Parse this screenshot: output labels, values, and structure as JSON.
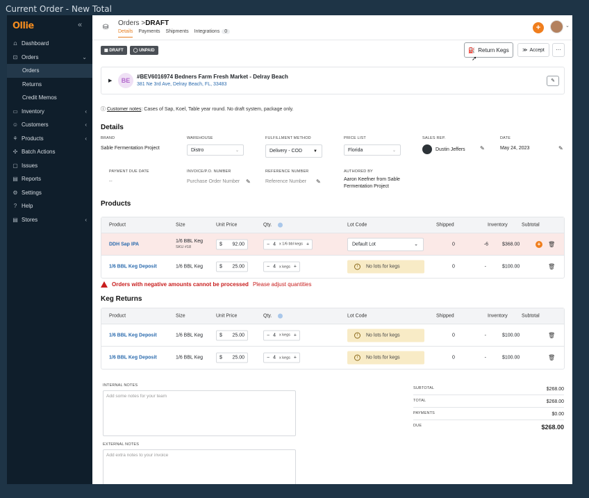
{
  "window_title": "Current Order - New Total",
  "logo": "Ollie",
  "collapse_icon": "«",
  "nav": [
    {
      "label": "Dashboard",
      "icon": "dashboard-icon",
      "glyph": "⩍"
    },
    {
      "label": "Orders",
      "icon": "orders-icon",
      "glyph": "⊡",
      "chev": "⌄"
    },
    {
      "label": "Orders",
      "sub": true,
      "active": true
    },
    {
      "label": "Returns",
      "sub": true
    },
    {
      "label": "Credit Memos",
      "sub": true
    },
    {
      "label": "Inventory",
      "icon": "inventory-icon",
      "glyph": "▭",
      "chev": "‹"
    },
    {
      "label": "Customers",
      "icon": "customers-icon",
      "glyph": "☺",
      "chev": "‹"
    },
    {
      "label": "Products",
      "icon": "products-icon",
      "glyph": "⚘",
      "chev": "‹"
    },
    {
      "label": "Batch Actions",
      "icon": "batch-icon",
      "glyph": "✣"
    },
    {
      "label": "Issues",
      "icon": "issues-icon",
      "glyph": "▢"
    },
    {
      "label": "Reports",
      "icon": "reports-icon",
      "glyph": "▤"
    },
    {
      "label": "Settings",
      "icon": "settings-icon",
      "glyph": "⚙"
    },
    {
      "label": "Help",
      "icon": "help-icon",
      "glyph": "?"
    },
    {
      "label": "Stores",
      "icon": "stores-icon",
      "glyph": "▤",
      "chev": "‹"
    }
  ],
  "header": {
    "crumb_parent": "Orders",
    "crumb_sep": ">",
    "crumb_current": "DRAFT",
    "tabs": [
      "Details",
      "Payments",
      "Shipments",
      "Integrations"
    ],
    "integrations_count": "0"
  },
  "status": {
    "draft": "DRAFT",
    "unpaid": "UNPAID"
  },
  "actions": {
    "return_kegs": "Return Kegs",
    "accept": "Accept",
    "more": "···"
  },
  "customer": {
    "initials": "BE",
    "name": "#BEV6016974 Bedners Farm Fresh Market - Delray Beach",
    "address": "381 Ne 3rd Ave, Delray Beach, FL, 33483"
  },
  "customer_notes": {
    "label": "Customer notes",
    "text": ": Cases of Sap, Koel, Table year round. No draft system, package only."
  },
  "details": {
    "heading": "Details",
    "brand_label": "BRAND",
    "brand": "Sable Fermentation Project",
    "warehouse_label": "WAREHOUSE",
    "warehouse": "Distro",
    "fulfillment_label": "FULFILLMENT METHOD",
    "fulfillment": "Delivery - COD",
    "price_list_label": "PRICE LIST",
    "price_list": "Florida",
    "sales_rep_label": "SALES REP.",
    "sales_rep": "Dustin Jeffers",
    "date_label": "DATE",
    "date": "May 24, 2023",
    "due_label": "PAYMENT DUE DATE",
    "due": "--",
    "invoice_label": "INVOICE/P.O. NUMBER",
    "invoice_ph": "Purchase Order Number",
    "ref_label": "REFERENCE NUMBER",
    "ref_ph": "Reference Number",
    "authored_label": "AUTHORED BY",
    "authored": "Aaron Keefner from Sable Fermentation Project"
  },
  "products": {
    "heading": "Products",
    "columns": [
      "Product",
      "Size",
      "Unit Price",
      "Qty.",
      "Lot Code",
      "Shipped",
      "Inventory",
      "Subtotal"
    ],
    "rows": [
      {
        "product": "DDH Sap IPA",
        "size": "1/6 BBL Keg",
        "sku": "SKU #18",
        "currency": "$",
        "price": "92.00",
        "qty": "4",
        "unit": "x 1/6 bbl kegs",
        "lot": "Default Lot",
        "shipped": "0",
        "inventory": "-6",
        "subtotal": "$368.00",
        "error": true
      },
      {
        "product": "1/6 BBL Keg Deposit",
        "size": "1/6 BBL Keg",
        "currency": "$",
        "price": "25.00",
        "qty": "4",
        "unit": "x kegs",
        "lot": "No lots for kegs",
        "shipped": "0",
        "inventory": "-",
        "subtotal": "$100.00"
      }
    ]
  },
  "error": {
    "main": "Orders with negative amounts cannot be processed",
    "sub": "Please adjust quantities"
  },
  "returns": {
    "heading": "Keg Returns",
    "columns": [
      "Product",
      "Size",
      "Unit Price",
      "Qty.",
      "Lot Code",
      "Shipped",
      "Inventory",
      "Subtotal"
    ],
    "rows": [
      {
        "product": "1/6 BBL Keg Deposit",
        "size": "1/6 BBL Keg",
        "currency": "$",
        "price": "25.00",
        "qty": "4",
        "unit": "x kegs",
        "lot": "No lots for kegs",
        "shipped": "0",
        "inventory": "-",
        "subtotal": "$100.00"
      },
      {
        "product": "1/6 BBL Keg Deposit",
        "size": "1/6 BBL Keg",
        "currency": "$",
        "price": "25.00",
        "qty": "4",
        "unit": "x kegs",
        "lot": "No lots for kegs",
        "shipped": "0",
        "inventory": "-",
        "subtotal": "$100.00"
      }
    ]
  },
  "notes": {
    "internal_label": "INTERNAL NOTES",
    "internal_ph": "Add some notes for your team",
    "external_label": "EXTERNAL NOTES",
    "external_ph": "Add extra notes to your invoice"
  },
  "totals": {
    "subtotal_label": "SUBTOTAL",
    "subtotal": "$268.00",
    "total_label": "TOTAL",
    "total": "$268.00",
    "payments_label": "PAYMENTS",
    "payments": "$0.00",
    "due_label": "DUE",
    "due": "$268.00"
  },
  "colors": {
    "accent": "#f07e1d",
    "link": "#2a6aad",
    "error": "#c81e1e",
    "sidebar": "#0f1e2b"
  }
}
